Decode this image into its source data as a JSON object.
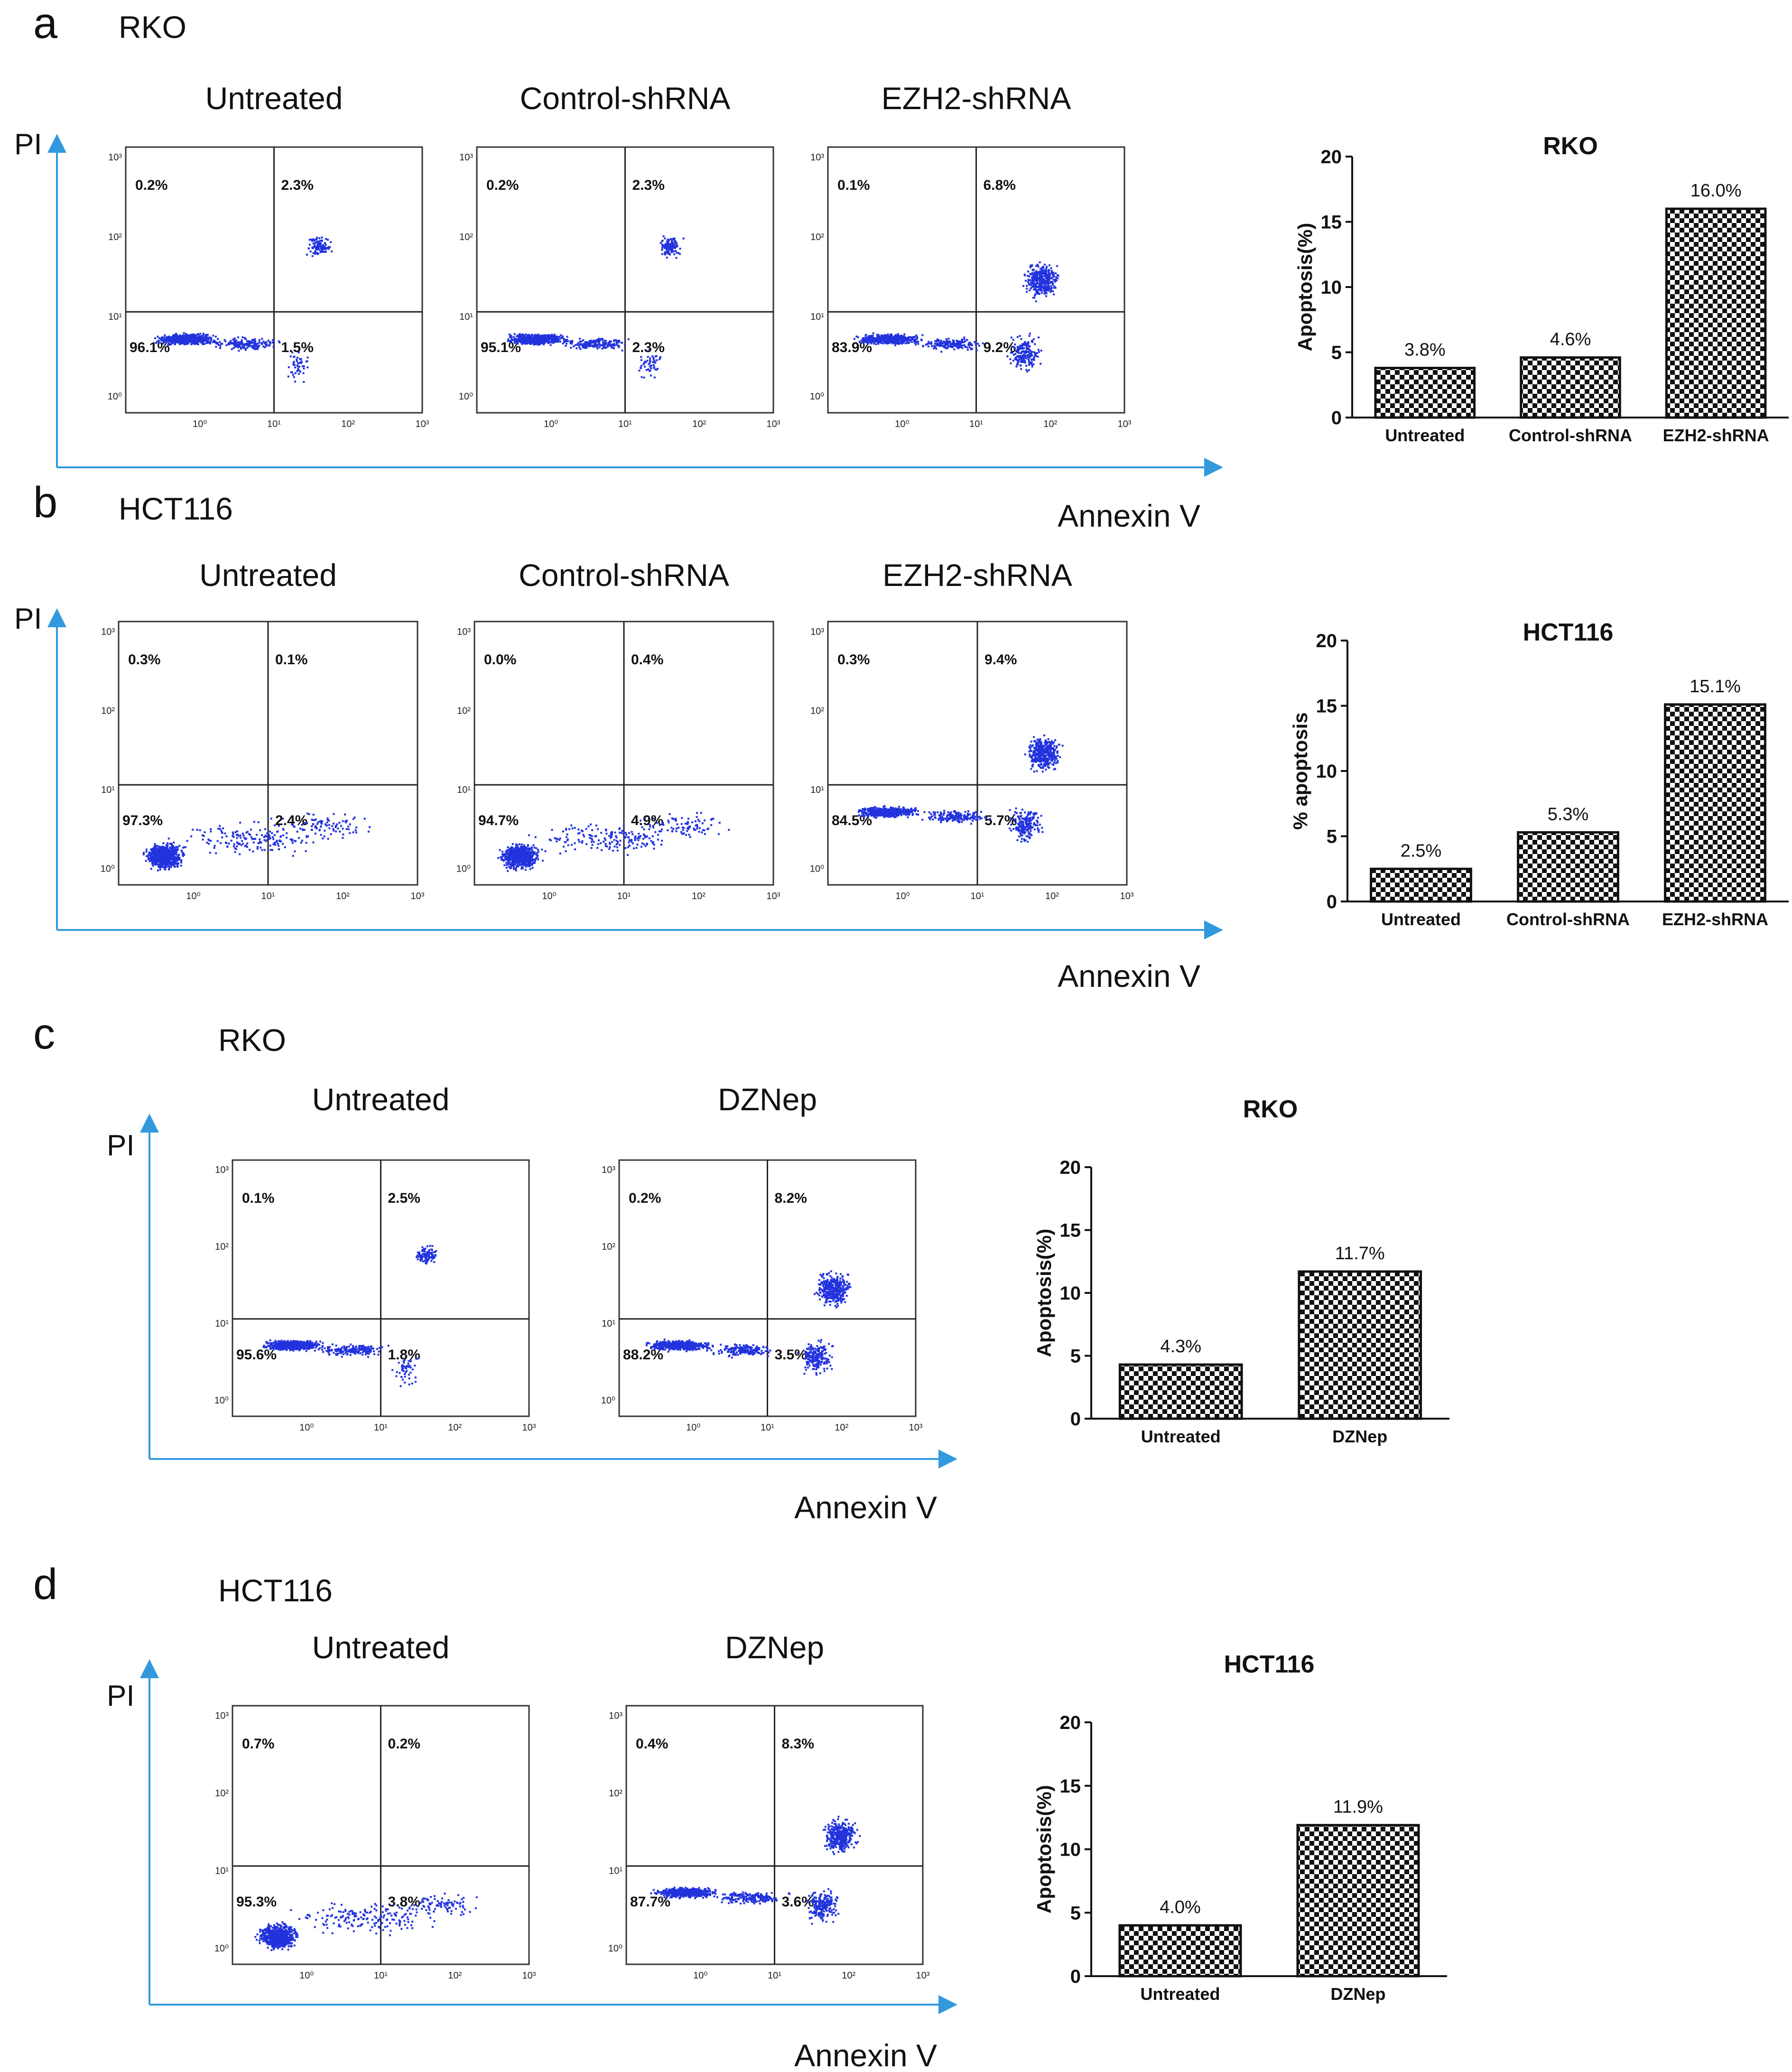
{
  "panels": [
    {
      "letter": "a",
      "cell_line": "RKO",
      "flow": {
        "y_axis": "PI",
        "x_axis": "Annexin V",
        "plots": [
          {
            "title": "Untreated",
            "q_ul": "0.2%",
            "q_ur": "2.3%",
            "q_ll": "96.1%",
            "q_lr": "1.5%",
            "pattern": "compact"
          },
          {
            "title": "Control-shRNA",
            "q_ul": "0.2%",
            "q_ur": "2.3%",
            "q_ll": "95.1%",
            "q_lr": "2.3%",
            "pattern": "compact"
          },
          {
            "title": "EZH2-shRNA",
            "q_ul": "0.1%",
            "q_ur": "6.8%",
            "q_ll": "83.9%",
            "q_lr": "9.2%",
            "pattern": "apoptotic"
          }
        ]
      },
      "chart_data": {
        "type": "bar",
        "title": "RKO",
        "ylabel": "Apoptosis(%)",
        "xlabel": "",
        "ylim": [
          0,
          20
        ],
        "yticks": [
          0,
          5,
          10,
          15,
          20
        ],
        "categories": [
          "Untreated",
          "Control-shRNA",
          "EZH2-shRNA"
        ],
        "values": [
          3.8,
          4.6,
          16.0
        ],
        "labels": [
          "3.8%",
          "4.6%",
          "16.0%"
        ]
      }
    },
    {
      "letter": "b",
      "cell_line": "HCT116",
      "flow": {
        "y_axis": "PI",
        "x_axis": "Annexin V",
        "plots": [
          {
            "title": "Untreated",
            "q_ul": "0.3%",
            "q_ur": "0.1%",
            "q_ll": "97.3%",
            "q_lr": "2.4%",
            "pattern": "blob"
          },
          {
            "title": "Control-shRNA",
            "q_ul": "0.0%",
            "q_ur": "0.4%",
            "q_ll": "94.7%",
            "q_lr": "4.9%",
            "pattern": "blob"
          },
          {
            "title": "EZH2-shRNA",
            "q_ul": "0.3%",
            "q_ur": "9.4%",
            "q_ll": "84.5%",
            "q_lr": "5.7%",
            "pattern": "apoptotic"
          }
        ]
      },
      "chart_data": {
        "type": "bar",
        "title": "HCT116",
        "ylabel": "% apoptosis",
        "xlabel": "",
        "ylim": [
          0,
          20
        ],
        "yticks": [
          0,
          5,
          10,
          15,
          20
        ],
        "categories": [
          "Untreated",
          "Control-shRNA",
          "EZH2-shRNA"
        ],
        "values": [
          2.5,
          5.3,
          15.1
        ],
        "labels": [
          "2.5%",
          "5.3%",
          "15.1%"
        ]
      }
    },
    {
      "letter": "c",
      "cell_line": "RKO",
      "flow": {
        "y_axis": "PI",
        "x_axis": "Annexin V",
        "plots": [
          {
            "title": "Untreated",
            "q_ul": "0.1%",
            "q_ur": "2.5%",
            "q_ll": "95.6%",
            "q_lr": "1.8%",
            "pattern": "compact"
          },
          {
            "title": "DZNep",
            "q_ul": "0.2%",
            "q_ur": "8.2%",
            "q_ll": "88.2%",
            "q_lr": "3.5%",
            "pattern": "apoptotic"
          }
        ]
      },
      "chart_data": {
        "type": "bar",
        "title": "RKO",
        "ylabel": "Apoptosis(%)",
        "xlabel": "",
        "ylim": [
          0,
          20
        ],
        "yticks": [
          0,
          5,
          10,
          15,
          20
        ],
        "categories": [
          "Untreated",
          "DZNep"
        ],
        "values": [
          4.3,
          11.7
        ],
        "labels": [
          "4.3%",
          "11.7%"
        ]
      }
    },
    {
      "letter": "d",
      "cell_line": "HCT116",
      "flow": {
        "y_axis": "PI",
        "x_axis": "Annexin V",
        "plots": [
          {
            "title": "Untreated",
            "q_ul": "0.7%",
            "q_ur": "0.2%",
            "q_ll": "95.3%",
            "q_lr": "3.8%",
            "pattern": "blob"
          },
          {
            "title": "DZNep",
            "q_ul": "0.4%",
            "q_ur": "8.3%",
            "q_ll": "87.7%",
            "q_lr": "3.6%",
            "pattern": "apoptotic"
          }
        ]
      },
      "chart_data": {
        "type": "bar",
        "title": "HCT116",
        "ylabel": "Apoptosis(%)",
        "xlabel": "",
        "ylim": [
          0,
          20
        ],
        "yticks": [
          0,
          5,
          10,
          15,
          20
        ],
        "categories": [
          "Untreated",
          "DZNep"
        ],
        "values": [
          4.0,
          11.9
        ],
        "labels": [
          "4.0%",
          "11.9%"
        ]
      }
    }
  ],
  "colors": {
    "dots": "#2233dd",
    "axis_arrow": "#3399dd",
    "bar_border": "#111111",
    "checker": "#111111",
    "text": "#111111"
  },
  "flow_ticks": [
    "10⁰",
    "10¹",
    "10²",
    "10³"
  ]
}
